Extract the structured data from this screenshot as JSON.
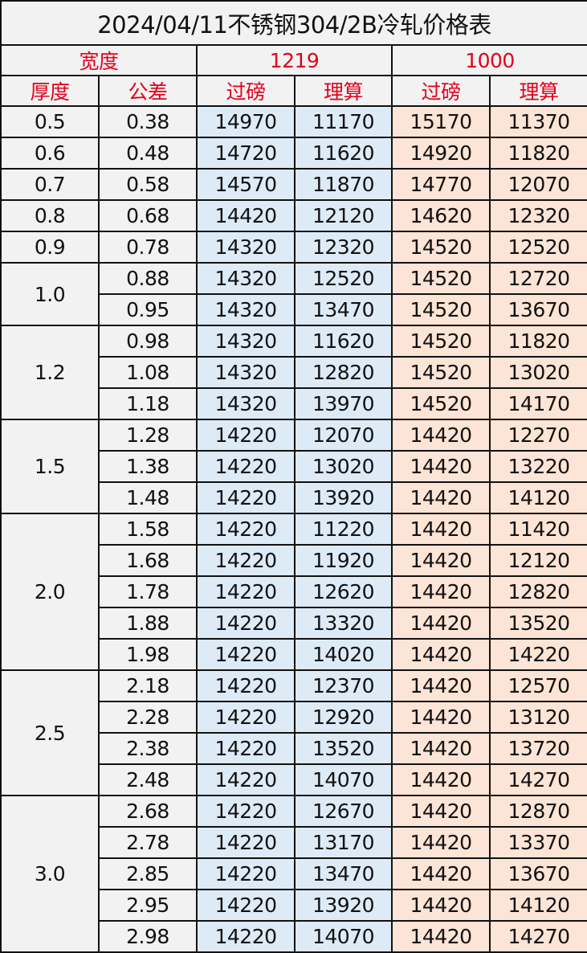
{
  "title": "2024/04/11不锈钢304/2B冷轧价格表",
  "headers": {
    "width_label": "宽度",
    "width_a": "1219",
    "width_b": "1000",
    "thickness": "厚度",
    "tolerance": "公差",
    "a_overweight": "过磅",
    "a_theoretical": "理算",
    "b_overweight": "过磅",
    "b_theoretical": "理算"
  },
  "colors": {
    "header_text": "#e3001b",
    "col_1219_bg": "#ddebf7",
    "col_1000_bg": "#fce4d6",
    "base_bg": "#f2f2f2"
  },
  "groups": [
    {
      "thickness": "0.5",
      "rows": [
        [
          "0.38",
          "14970",
          "11170",
          "15170",
          "11370"
        ]
      ]
    },
    {
      "thickness": "0.6",
      "rows": [
        [
          "0.48",
          "14720",
          "11620",
          "14920",
          "11820"
        ]
      ]
    },
    {
      "thickness": "0.7",
      "rows": [
        [
          "0.58",
          "14570",
          "11870",
          "14770",
          "12070"
        ]
      ]
    },
    {
      "thickness": "0.8",
      "rows": [
        [
          "0.68",
          "14420",
          "12120",
          "14620",
          "12320"
        ]
      ]
    },
    {
      "thickness": "0.9",
      "rows": [
        [
          "0.78",
          "14320",
          "12320",
          "14520",
          "12520"
        ]
      ]
    },
    {
      "thickness": "1.0",
      "rows": [
        [
          "0.88",
          "14320",
          "12520",
          "14520",
          "12720"
        ],
        [
          "0.95",
          "14320",
          "13470",
          "14520",
          "13670"
        ]
      ]
    },
    {
      "thickness": "1.2",
      "rows": [
        [
          "0.98",
          "14320",
          "11620",
          "14520",
          "11820"
        ],
        [
          "1.08",
          "14320",
          "12820",
          "14520",
          "13020"
        ],
        [
          "1.18",
          "14320",
          "13970",
          "14520",
          "14170"
        ]
      ]
    },
    {
      "thickness": "1.5",
      "rows": [
        [
          "1.28",
          "14220",
          "12070",
          "14420",
          "12270"
        ],
        [
          "1.38",
          "14220",
          "13020",
          "14420",
          "13220"
        ],
        [
          "1.48",
          "14220",
          "13920",
          "14420",
          "14120"
        ]
      ]
    },
    {
      "thickness": "2.0",
      "rows": [
        [
          "1.58",
          "14220",
          "11220",
          "14420",
          "11420"
        ],
        [
          "1.68",
          "14220",
          "11920",
          "14420",
          "12120"
        ],
        [
          "1.78",
          "14220",
          "12620",
          "14420",
          "12820"
        ],
        [
          "1.88",
          "14220",
          "13320",
          "14420",
          "13520"
        ],
        [
          "1.98",
          "14220",
          "14020",
          "14420",
          "14220"
        ]
      ]
    },
    {
      "thickness": "2.5",
      "rows": [
        [
          "2.18",
          "14220",
          "12370",
          "14420",
          "12570"
        ],
        [
          "2.28",
          "14220",
          "12920",
          "14420",
          "13120"
        ],
        [
          "2.38",
          "14220",
          "13520",
          "14420",
          "13720"
        ],
        [
          "2.48",
          "14220",
          "14070",
          "14420",
          "14270"
        ]
      ]
    },
    {
      "thickness": "3.0",
      "rows": [
        [
          "2.68",
          "14220",
          "12670",
          "14420",
          "12870"
        ],
        [
          "2.78",
          "14220",
          "13170",
          "14420",
          "13370"
        ],
        [
          "2.85",
          "14220",
          "13470",
          "14420",
          "13670"
        ],
        [
          "2.95",
          "14220",
          "13920",
          "14420",
          "14120"
        ],
        [
          "2.98",
          "14220",
          "14070",
          "14420",
          "14270"
        ]
      ]
    }
  ]
}
